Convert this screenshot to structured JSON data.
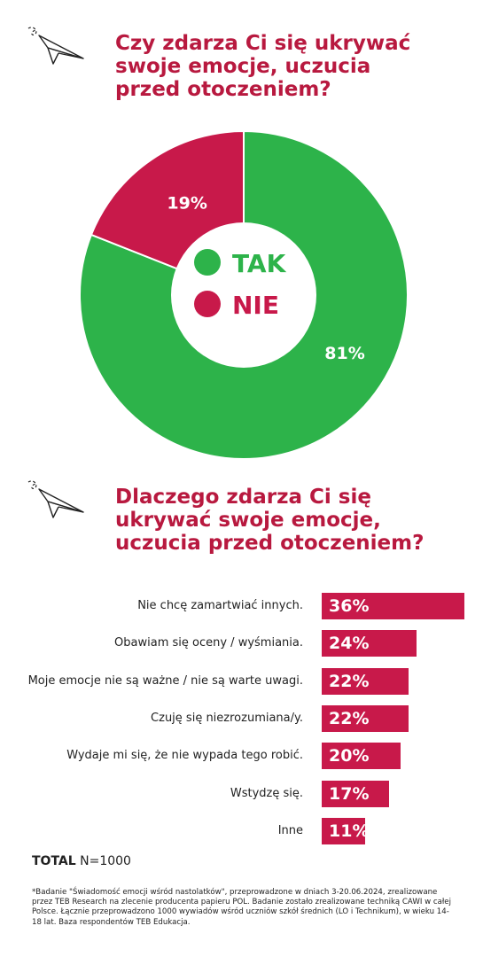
{
  "colors": {
    "yes": "#2db34a",
    "no": "#c8194a",
    "accent": "#b8193f",
    "text": "#222222"
  },
  "icons": {
    "plane": "paper-plane-icon"
  },
  "section1": {
    "title": "Czy zdarza Ci się ukrywać\nswoje emocje, uczucia\nprzed otoczeniem?"
  },
  "section2": {
    "title": "Dlaczego zdarza Ci się\nukrywać swoje emocje,\nuczucia przed otoczeniem?"
  },
  "chart_data": [
    {
      "type": "pie",
      "title": "Czy zdarza Ci się ukrywać swoje emocje, uczucia przed otoczeniem?",
      "categories": [
        "TAK",
        "NIE"
      ],
      "values": [
        81,
        19
      ],
      "labels": [
        "81%",
        "19%"
      ],
      "colors": [
        "#2db34a",
        "#c8194a"
      ],
      "legend": [
        "TAK",
        "NIE"
      ],
      "legend_placement": "center"
    },
    {
      "type": "bar",
      "title": "Dlaczego zdarza Ci się ukrywać swoje emocje, uczucia przed otoczeniem?",
      "orientation": "horizontal",
      "categories": [
        "Nie chcę zamartwiać innych.",
        "Obawiam się oceny / wyśmiania.",
        "Moje emocje nie są ważne / nie są warte uwagi.",
        "Czuję się niezrozumiana/y.",
        "Wydaje mi się, że nie wypada tego robić.",
        "Wstydzę się.",
        "Inne"
      ],
      "values": [
        36,
        24,
        22,
        22,
        20,
        17,
        11
      ],
      "labels": [
        "36%",
        "24%",
        "22%",
        "22%",
        "20%",
        "17%",
        "11%"
      ],
      "xlim": [
        0,
        36
      ],
      "color": "#c8194a"
    }
  ],
  "total": {
    "label": "TOTAL",
    "value": "N=1000"
  },
  "footnote": "*Badanie \"Świadomość emocji wśród nastolatków\", przeprowadzone w dniach 3-20.06.2024, zrealizowane przez TEB Research na zlecenie producenta papieru POL. Badanie zostało zrealizowane techniką CAWI w całej Polsce. Łącznie przeprowadzono 1000 wywiadów wśród uczniów szkół średnich (LO i Technikum), w wieku 14-18 lat. Baza respondentów TEB Edukacja."
}
